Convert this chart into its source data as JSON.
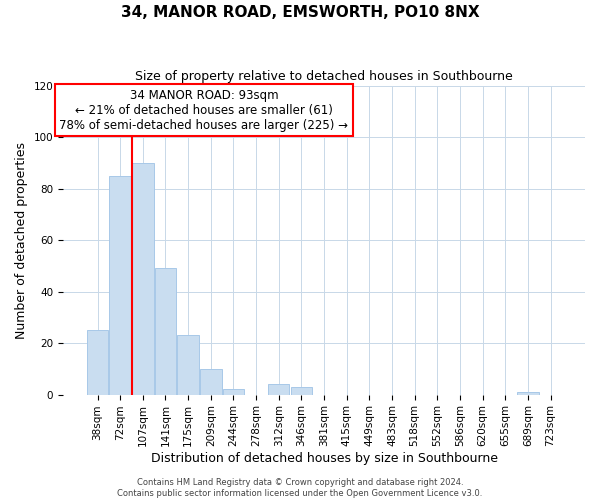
{
  "title": "34, MANOR ROAD, EMSWORTH, PO10 8NX",
  "subtitle": "Size of property relative to detached houses in Southbourne",
  "xlabel": "Distribution of detached houses by size in Southbourne",
  "ylabel": "Number of detached properties",
  "bar_labels": [
    "38sqm",
    "72sqm",
    "107sqm",
    "141sqm",
    "175sqm",
    "209sqm",
    "244sqm",
    "278sqm",
    "312sqm",
    "346sqm",
    "381sqm",
    "415sqm",
    "449sqm",
    "483sqm",
    "518sqm",
    "552sqm",
    "586sqm",
    "620sqm",
    "655sqm",
    "689sqm",
    "723sqm"
  ],
  "bar_values": [
    25,
    85,
    90,
    49,
    23,
    10,
    2,
    0,
    4,
    3,
    0,
    0,
    0,
    0,
    0,
    0,
    0,
    0,
    0,
    1,
    0
  ],
  "bar_color": "#c9ddf0",
  "bar_edge_color": "#a8c8e8",
  "vline_color": "red",
  "vline_position": 1.525,
  "ylim": [
    0,
    120
  ],
  "yticks": [
    0,
    20,
    40,
    60,
    80,
    100,
    120
  ],
  "annotation_title": "34 MANOR ROAD: 93sqm",
  "annotation_line1": "← 21% of detached houses are smaller (61)",
  "annotation_line2": "78% of semi-detached houses are larger (225) →",
  "annotation_box_color": "white",
  "annotation_box_edge_color": "red",
  "footer_line1": "Contains HM Land Registry data © Crown copyright and database right 2024.",
  "footer_line2": "Contains public sector information licensed under the Open Government Licence v3.0.",
  "background_color": "white",
  "grid_color": "#c8d8e8",
  "title_fontsize": 11,
  "subtitle_fontsize": 9,
  "xlabel_fontsize": 9,
  "ylabel_fontsize": 9,
  "tick_fontsize": 7.5,
  "annotation_fontsize": 8.5,
  "footer_fontsize": 6
}
